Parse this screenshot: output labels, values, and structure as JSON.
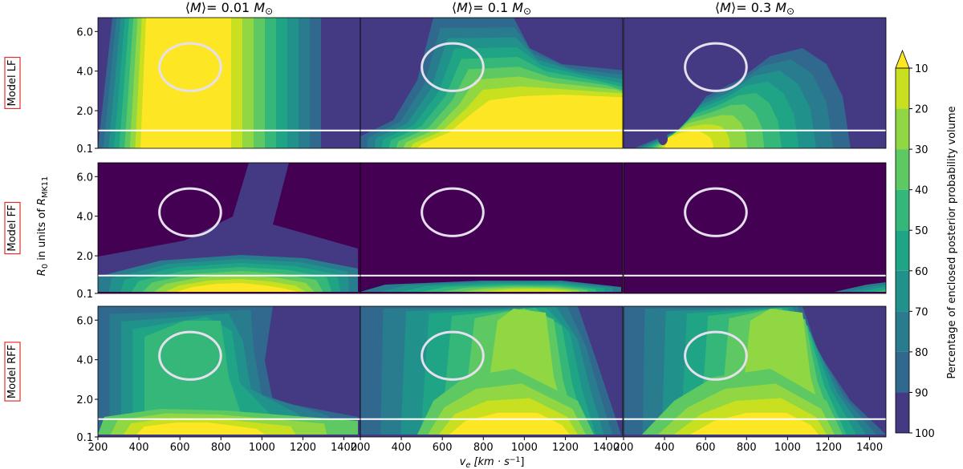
{
  "chart_data": {
    "type": "contour-grid",
    "column_titles": [
      [
        {
          "text": "⟨"
        },
        {
          "text": "M",
          "italic": true
        },
        {
          "text": "⟩= 0.01 "
        },
        {
          "text": "M",
          "italic": true
        },
        {
          "text": "⊙",
          "sub": true
        }
      ],
      [
        {
          "text": "⟨"
        },
        {
          "text": "M",
          "italic": true
        },
        {
          "text": "⟩= 0.1 "
        },
        {
          "text": "M",
          "italic": true
        },
        {
          "text": "⊙",
          "sub": true
        }
      ],
      [
        {
          "text": "⟨"
        },
        {
          "text": "M",
          "italic": true
        },
        {
          "text": "⟩= 0.3 "
        },
        {
          "text": "M",
          "italic": true
        },
        {
          "text": "⊙",
          "sub": true
        }
      ]
    ],
    "row_labels": [
      "Model LF",
      "Model FF",
      "Model RFF"
    ],
    "xlabel": [
      {
        "text": "v",
        "italic": true
      },
      {
        "text": "e",
        "sub": true,
        "italic": true
      },
      {
        "text": " [",
        "italic": true
      },
      {
        "text": "km · s",
        "italic": true
      },
      {
        "text": "−1",
        "sup": true
      },
      {
        "text": "]"
      }
    ],
    "ylabel": [
      {
        "text": "R",
        "italic": true
      },
      {
        "text": "0",
        "sub": true
      },
      {
        "text": "  in units of "
      },
      {
        "text": "R",
        "italic": true
      },
      {
        "text": "MK11",
        "sub": true
      }
    ],
    "xlim": [
      200,
      1480
    ],
    "xticks": [
      200,
      400,
      600,
      800,
      1000,
      1200,
      1400
    ],
    "ylim": [
      0.1,
      6.7
    ],
    "yticks": [
      0.1,
      {
        "value": 2,
        "label": "2.0"
      },
      {
        "value": 4,
        "label": "4.0"
      },
      {
        "value": 6,
        "label": "6.0"
      }
    ],
    "reference_line": 1.0,
    "reference_ellipse": {
      "x": 650,
      "y": 4.2,
      "rx": 150,
      "ry": 1.2
    },
    "colorbar": {
      "label": "Percentage of enclosed posterior probability volume",
      "ticks": [
        10,
        20,
        30,
        40,
        50,
        60,
        70,
        80,
        90,
        100
      ],
      "level_colors": [
        "#c8e020",
        "#90d743",
        "#5ec962",
        "#35b779",
        "#20a486",
        "#21918c",
        "#287c8e",
        "#31688e",
        "#443983"
      ],
      "extend_color": "#fde725"
    }
  }
}
